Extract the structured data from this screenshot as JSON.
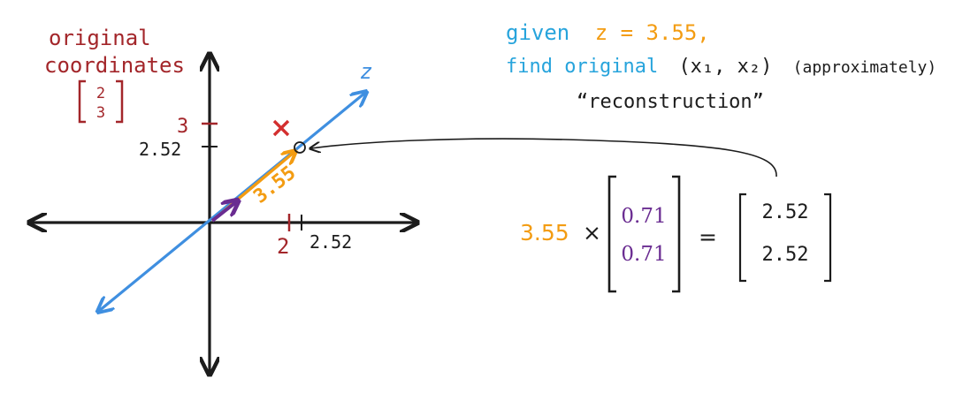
{
  "colors": {
    "ink": "#1c1c1c",
    "dark_red": "#a3262a",
    "cross_red": "#d32f2f",
    "blue": "#3f8fe0",
    "cyan_text": "#27a4dc",
    "orange": "#f39c12",
    "purple": "#6a2c91"
  },
  "top_left": {
    "line1": "original",
    "line2": "coordinates",
    "vector_top": "2",
    "vector_bottom": "3"
  },
  "axes": {
    "z_label": "z",
    "y_tick_3": "3",
    "y_tick_252": "2.52",
    "x_tick_2": "2",
    "x_tick_252": "2.52",
    "projection_length": "3.55"
  },
  "header": {
    "line1_given": "given",
    "line1_eq": "z = 3.55,",
    "line2_find": "find original",
    "line2_coords": "(x₁, x₂)",
    "line2_approx": "(approximately)",
    "line3": "“reconstruction”"
  },
  "equation": {
    "scalar": "3.55",
    "times": "×",
    "unit_top": "0.71",
    "unit_bottom": "0.71",
    "equals": "=",
    "result_top": "2.52",
    "result_bottom": "2.52"
  }
}
